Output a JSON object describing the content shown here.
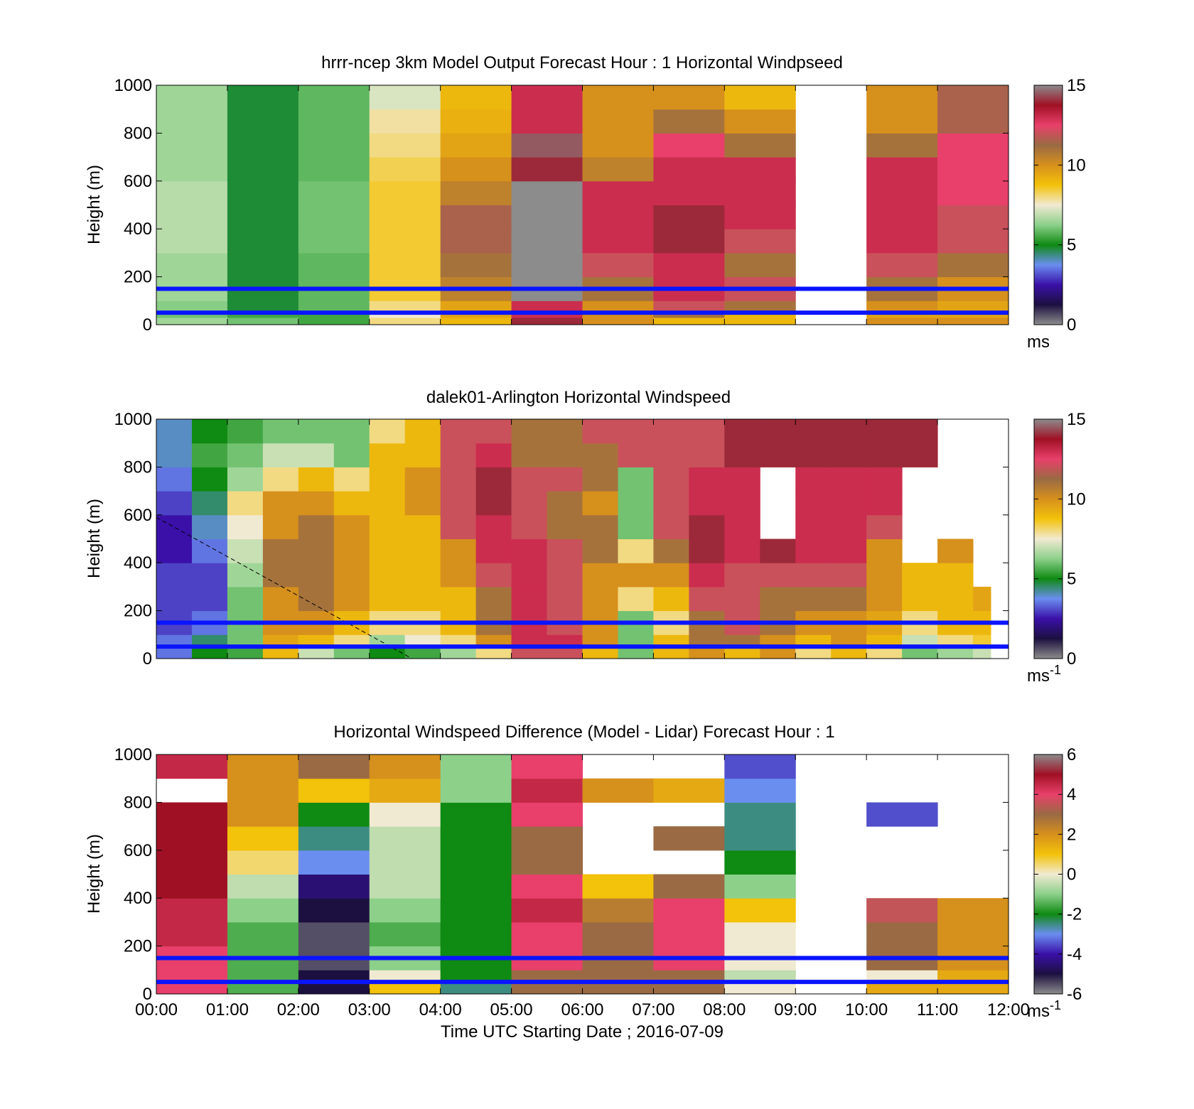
{
  "figure": {
    "xlabel": "Time UTC  Starting Date ; 2016-07-09",
    "x_ticks": [
      "00:00",
      "01:00",
      "02:00",
      "03:00",
      "04:00",
      "05:00",
      "06:00",
      "07:00",
      "08:00",
      "09:00",
      "10:00",
      "11:00",
      "12:00"
    ]
  },
  "colors": {
    "reference_lines": "#0a14ff",
    "colorbar_stops": [
      "#8c8c8c",
      "#1c1040",
      "#3a10a8",
      "#6a8ef0",
      "#0f8a12",
      "#8cd08a",
      "#f1ead2",
      "#f3c20a",
      "#d6901c",
      "#9a6a44",
      "#e8406a",
      "#a01024",
      "#8c8c8c"
    ]
  },
  "chart_data": [
    {
      "type": "heatmap",
      "title": "hrrr-ncep 3km Model Output   Forecast Hour : 1 Horizontal Windpseed",
      "ylabel": "Height (m)",
      "xlim": [
        0,
        12
      ],
      "ylim": [
        0,
        1000
      ],
      "y_ticks": [
        "0",
        "200",
        "400",
        "600",
        "800",
        "1000"
      ],
      "colorbar": {
        "range": [
          0,
          15
        ],
        "ticks": [
          "0",
          "5",
          "10",
          "15"
        ],
        "unit": "ms",
        "unit_sup": ""
      },
      "reference_lines_height": [
        50,
        150
      ],
      "x_bins": [
        0,
        1,
        2,
        3,
        4,
        5,
        6,
        7,
        8,
        9,
        10,
        11
      ],
      "height_levels": [
        0,
        30,
        50,
        100,
        200,
        300,
        400,
        500,
        600,
        700,
        800,
        900
      ],
      "values": [
        [
          6.5,
          6,
          5.5,
          8,
          9,
          14,
          10,
          9,
          9,
          null,
          10,
          10
        ],
        [
          6,
          5.5,
          5.5,
          7.5,
          9.5,
          13,
          10,
          11,
          9,
          null,
          9.5,
          9.5
        ],
        [
          6.2,
          4.8,
          5.8,
          8,
          9.5,
          13,
          10,
          12,
          11,
          null,
          10,
          9.5
        ],
        [
          6.5,
          4.8,
          5.8,
          8.5,
          10.5,
          15,
          11,
          13,
          12,
          null,
          11,
          10
        ],
        [
          6.5,
          4.8,
          5.8,
          8.5,
          11,
          15,
          12,
          13,
          11,
          null,
          12,
          11
        ],
        [
          6.8,
          4.8,
          6,
          8.5,
          11.5,
          15,
          13,
          14,
          12,
          null,
          13,
          12
        ],
        [
          6.8,
          4.8,
          6,
          8.5,
          11.5,
          15,
          13,
          14,
          13,
          null,
          13,
          12
        ],
        [
          6.8,
          4.8,
          6,
          8.5,
          10.5,
          15,
          13,
          13,
          13,
          null,
          13,
          12.5
        ],
        [
          6.5,
          4.8,
          5.8,
          8.3,
          10,
          14,
          10.5,
          13,
          13,
          null,
          13,
          12.5
        ],
        [
          6.5,
          4.8,
          5.8,
          8,
          9.5,
          14.5,
          10,
          12.5,
          11,
          null,
          11,
          12.5
        ],
        [
          6.5,
          4.8,
          5.8,
          7.8,
          9.2,
          13,
          10,
          11,
          10,
          null,
          10,
          11.5
        ],
        [
          6.5,
          4.8,
          5.8,
          7.2,
          9,
          13,
          10,
          10,
          9,
          null,
          10,
          11.5
        ]
      ]
    },
    {
      "type": "heatmap",
      "title": "dalek01-Arlington  Horizontal Windspeed",
      "ylabel": "Height (m)",
      "xlim": [
        0,
        12
      ],
      "ylim": [
        0,
        1000
      ],
      "y_ticks": [
        "0",
        "200",
        "400",
        "600",
        "800",
        "1000"
      ],
      "colorbar": {
        "range": [
          0,
          15
        ],
        "ticks": [
          "0",
          "5",
          "10",
          "15"
        ],
        "unit": "ms",
        "unit_sup": "-1"
      },
      "reference_lines_height": [
        50,
        150
      ],
      "annotation_line": {
        "from": [
          0,
          590
        ],
        "to": [
          3.6,
          0
        ]
      },
      "x_bins": [
        0,
        0.5,
        1,
        1.5,
        2,
        2.5,
        3,
        3.5,
        4,
        4.5,
        5,
        5.5,
        6,
        6.5,
        7,
        7.5,
        8,
        8.5,
        9,
        9.5,
        10,
        10.5,
        11,
        11.5
      ],
      "height_levels": [
        0,
        50,
        100,
        200,
        300,
        400,
        500,
        600,
        700,
        800,
        900
      ],
      "values": [
        [
          3.5,
          5,
          5.5,
          9,
          7,
          6,
          5,
          5.5,
          6.5,
          8,
          12,
          12,
          9,
          6,
          9,
          10,
          9,
          10,
          8,
          9,
          8,
          6,
          6.5,
          7
        ],
        [
          3.5,
          4.5,
          6,
          9.5,
          9,
          8,
          6.5,
          7.5,
          8,
          10,
          13,
          13,
          10,
          6,
          9,
          11,
          11,
          10,
          9,
          10,
          9,
          7,
          8,
          8.5
        ],
        [
          3,
          3.5,
          6,
          10,
          10,
          9,
          8,
          8,
          9,
          11,
          13,
          12,
          10,
          6,
          8,
          11,
          12,
          11,
          10,
          10,
          9.5,
          8,
          9,
          9
        ],
        [
          3,
          3,
          6,
          10,
          11,
          10,
          9,
          9,
          9,
          11,
          13,
          12,
          10,
          8,
          9,
          12,
          12,
          11,
          11,
          11,
          10,
          9,
          9,
          9.5
        ],
        [
          3,
          3,
          6.5,
          11,
          11,
          10,
          9,
          9,
          10,
          12,
          13,
          12,
          10,
          10,
          10,
          13,
          12,
          12,
          12,
          12,
          10,
          9,
          9,
          null
        ],
        [
          2.5,
          3.5,
          7,
          11,
          11,
          10,
          9,
          9,
          10,
          13,
          13,
          12,
          11,
          8,
          11,
          14,
          13,
          14,
          13,
          13,
          10,
          null,
          10,
          null
        ],
        [
          2.5,
          4,
          7.5,
          10,
          11,
          10,
          9,
          9,
          12,
          13,
          12,
          11,
          11,
          6,
          12,
          14,
          13,
          null,
          13,
          13,
          12,
          null,
          null,
          null
        ],
        [
          3,
          4.5,
          8,
          10,
          10,
          9,
          9,
          10,
          12,
          14,
          12,
          11,
          10,
          6,
          12,
          13,
          13,
          null,
          13,
          13,
          13,
          null,
          null,
          null
        ],
        [
          3.5,
          5,
          6.5,
          8,
          9,
          8,
          9,
          10,
          12,
          14,
          12,
          12,
          11,
          6,
          12,
          13,
          13,
          null,
          13,
          13,
          13,
          null,
          null,
          null
        ],
        [
          4,
          5.5,
          6,
          7,
          7,
          6,
          9,
          9,
          12,
          13,
          11,
          11,
          11,
          12,
          12,
          12,
          14,
          14,
          14,
          14,
          14,
          14,
          null,
          null
        ],
        [
          4,
          5,
          5.5,
          6,
          6,
          6,
          8,
          9,
          12,
          12,
          11,
          11,
          12,
          12,
          12,
          12,
          14,
          14,
          14,
          14,
          14,
          14,
          null,
          null
        ]
      ]
    },
    {
      "type": "heatmap",
      "title": "Horizontal Windspeed Difference (Model - Lidar) Forecast Hour : 1",
      "ylabel": "Height (m)",
      "xlim": [
        0,
        12
      ],
      "ylim": [
        0,
        1000
      ],
      "y_ticks": [
        "0",
        "200",
        "400",
        "600",
        "800",
        "1000"
      ],
      "colorbar": {
        "range": [
          -6,
          6
        ],
        "ticks": [
          "-6",
          "-4",
          "-2",
          "0",
          "2",
          "4",
          "6"
        ],
        "unit": "ms",
        "unit_sup": "-1"
      },
      "reference_lines_height": [
        50,
        150
      ],
      "x_bins": [
        0,
        1,
        2,
        3,
        4,
        5,
        6,
        7,
        8,
        9,
        10,
        11
      ],
      "height_levels": [
        0,
        50,
        100,
        200,
        300,
        400,
        500,
        600,
        700,
        800,
        900
      ],
      "values": [
        [
          4,
          -1.5,
          -5,
          1,
          -2.5,
          3,
          3,
          3,
          0,
          null,
          1.5,
          1.5
        ],
        [
          4,
          -1.5,
          -5,
          0,
          -2,
          3,
          3,
          3,
          -0.5,
          null,
          0,
          1.5
        ],
        [
          4,
          -1.5,
          -5.5,
          -1,
          -2,
          4,
          3,
          4,
          0,
          null,
          3,
          2
        ],
        [
          4.5,
          -1.5,
          -5.5,
          -1.5,
          -2,
          4,
          3,
          4,
          0,
          null,
          3,
          2
        ],
        [
          4.5,
          -1,
          -5,
          -1,
          -2,
          4.5,
          2.5,
          4,
          1,
          null,
          3.5,
          2
        ],
        [
          5,
          -0.5,
          -4.5,
          -0.5,
          -2,
          4,
          1,
          3,
          -1,
          null,
          null,
          null
        ],
        [
          5,
          0.5,
          -3,
          -0.5,
          -2,
          3,
          null,
          null,
          -2,
          null,
          null,
          null
        ],
        [
          5,
          1,
          -2.5,
          -0.5,
          -2,
          3,
          null,
          3,
          -2.5,
          null,
          null,
          null
        ],
        [
          5,
          2,
          -2,
          0,
          -2,
          4,
          null,
          null,
          -2.5,
          null,
          -3.5,
          null
        ],
        [
          null,
          2,
          1,
          1.5,
          -1,
          4.5,
          2,
          1.5,
          -3,
          null,
          null,
          null
        ],
        [
          4.5,
          2,
          3,
          2,
          -1,
          4,
          null,
          null,
          -3.5,
          null,
          null,
          null
        ]
      ]
    }
  ]
}
